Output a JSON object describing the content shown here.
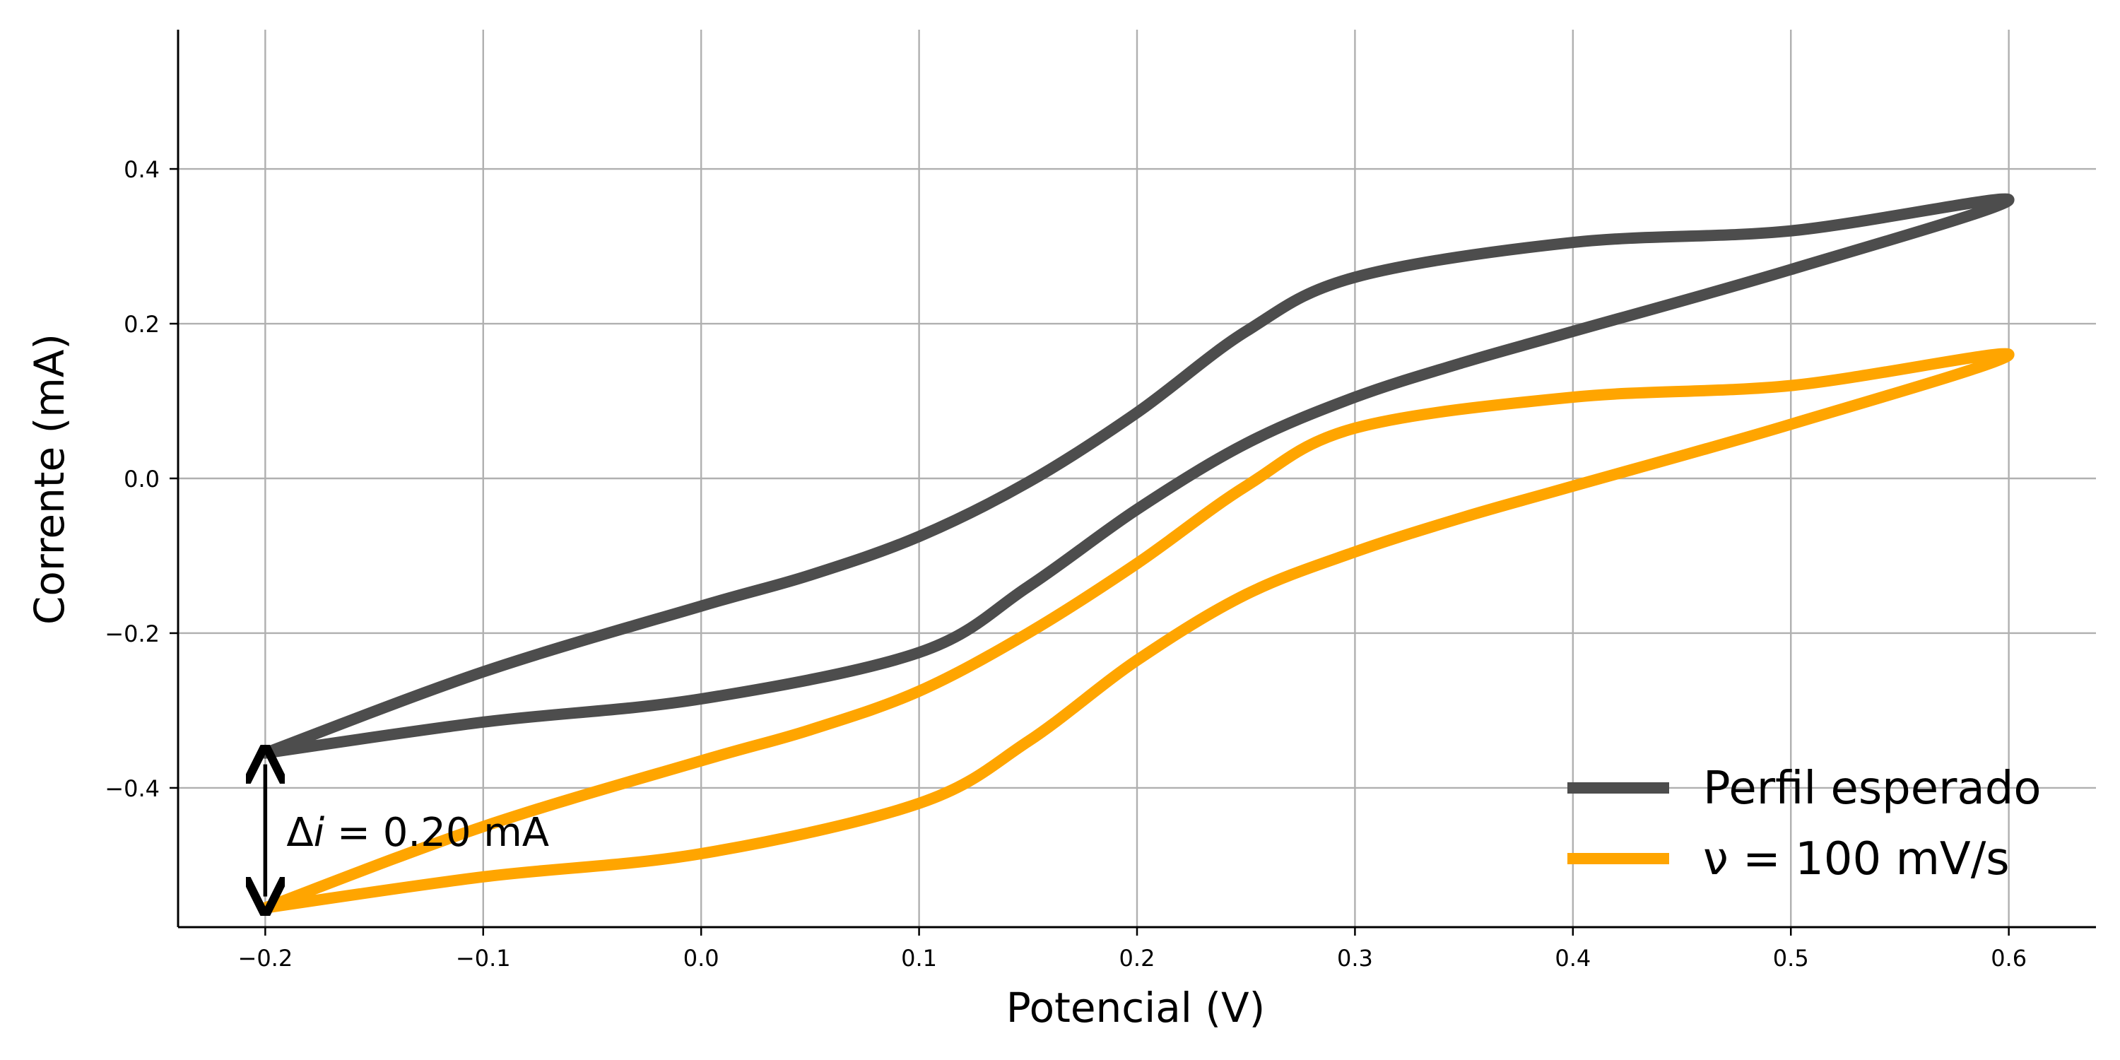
{
  "chart_data": {
    "type": "line",
    "title": "",
    "xlabel": "Potencial (V)",
    "ylabel": "Corrente (mA)",
    "xlim": [
      -0.24,
      0.64
    ],
    "ylim": [
      -0.58,
      0.58
    ],
    "x_ticks": [
      -0.2,
      -0.1,
      0.0,
      0.1,
      0.2,
      0.3,
      0.4,
      0.5,
      0.6
    ],
    "x_tick_labels": [
      "−0.2",
      "−0.1",
      "0.0",
      "0.1",
      "0.2",
      "0.3",
      "0.4",
      "0.5",
      "0.6"
    ],
    "y_ticks": [
      -0.4,
      -0.2,
      0.0,
      0.2,
      0.4
    ],
    "y_tick_labels": [
      "−0.4",
      "−0.2",
      "0.0",
      "0.2",
      "0.4"
    ],
    "grid": true,
    "legend_position": "lower-right",
    "series": [
      {
        "name": "Perfil esperado",
        "color": "#4d4d4d",
        "x": [
          -0.2,
          -0.1,
          0.0,
          0.1,
          0.15,
          0.2,
          0.25,
          0.3,
          0.35,
          0.4,
          0.5,
          0.6,
          0.5,
          0.4,
          0.3,
          0.25,
          0.2,
          0.15,
          0.1,
          0.05,
          0.0,
          -0.1,
          -0.2
        ],
        "y": [
          -0.355,
          -0.315,
          -0.285,
          -0.225,
          -0.14,
          -0.04,
          0.045,
          0.105,
          0.15,
          0.19,
          0.27,
          0.36,
          0.32,
          0.305,
          0.26,
          0.19,
          0.085,
          -0.005,
          -0.075,
          -0.125,
          -0.165,
          -0.25,
          -0.355
        ]
      },
      {
        "name": "ν = 100 mV/s",
        "color": "#ffa500",
        "x": [
          -0.2,
          -0.1,
          0.0,
          0.1,
          0.15,
          0.2,
          0.25,
          0.3,
          0.35,
          0.4,
          0.5,
          0.6,
          0.5,
          0.4,
          0.3,
          0.25,
          0.2,
          0.15,
          0.1,
          0.05,
          0.0,
          -0.1,
          -0.2
        ],
        "y": [
          -0.555,
          -0.515,
          -0.485,
          -0.42,
          -0.34,
          -0.235,
          -0.15,
          -0.095,
          -0.05,
          -0.01,
          0.07,
          0.16,
          0.12,
          0.105,
          0.065,
          -0.01,
          -0.11,
          -0.2,
          -0.275,
          -0.325,
          -0.365,
          -0.45,
          -0.555
        ]
      }
    ],
    "annotation": {
      "text_prefix": "Δ",
      "text_var": "i",
      "text_suffix": " = 0.20 mA",
      "x": -0.2,
      "y_from": -0.355,
      "y_to": -0.555
    }
  }
}
